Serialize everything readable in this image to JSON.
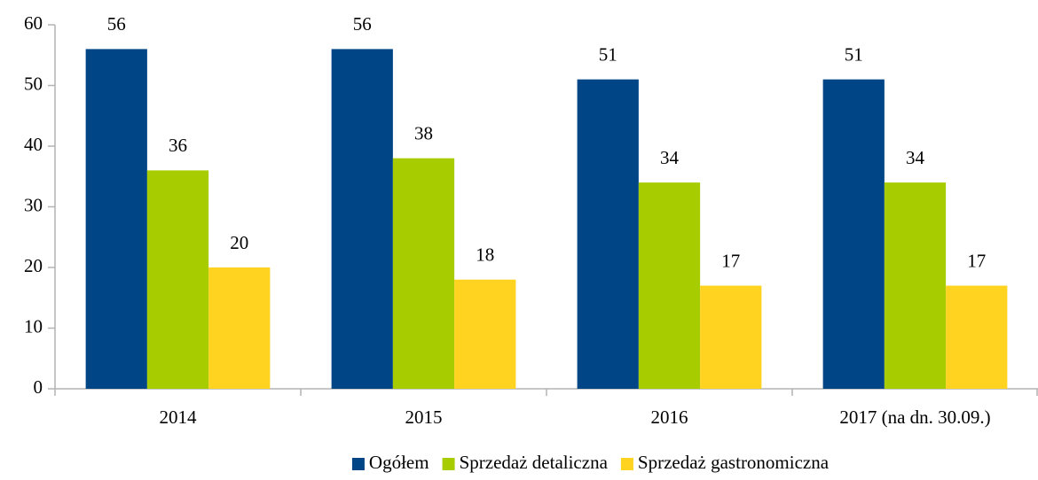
{
  "chart_data": {
    "type": "bar",
    "categories": [
      "2014",
      "2015",
      "2016",
      "2017 (na dn. 30.09.)"
    ],
    "series": [
      {
        "name": "Ogółem",
        "color": "#004586",
        "values": [
          56,
          56,
          51,
          51
        ]
      },
      {
        "name": "Sprzedaż detaliczna",
        "color": "#a7cc00",
        "values": [
          36,
          38,
          34,
          34
        ]
      },
      {
        "name": "Sprzedaż gastronomiczna",
        "color": "#ffd320",
        "values": [
          20,
          18,
          17,
          17
        ]
      }
    ],
    "ylim": [
      0,
      60
    ],
    "yticks": [
      0,
      10,
      20,
      30,
      40,
      50,
      60
    ],
    "grid": false,
    "legend": "bottom"
  }
}
